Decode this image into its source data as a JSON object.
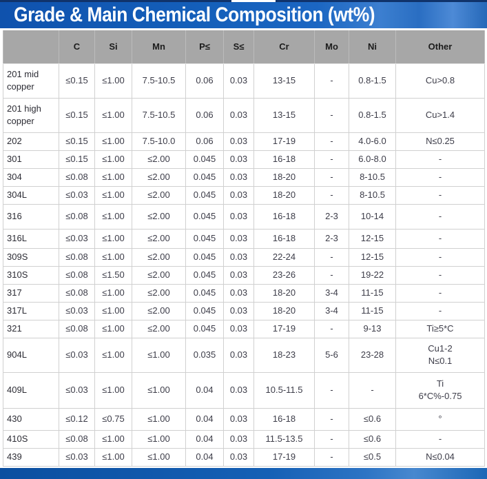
{
  "banner": {
    "title": "Grade & Main Chemical Composition (wt%)"
  },
  "table": {
    "columns": [
      "",
      "C",
      "Si",
      "Mn",
      "P≤",
      "S≤",
      "Cr",
      "Mo",
      "Ni",
      "Other"
    ],
    "rows": [
      {
        "grade": "201 mid copper",
        "values": [
          "≤0.15",
          "≤1.00",
          "7.5-10.5",
          "0.06",
          "0.03",
          "13-15",
          "-",
          "0.8-1.5",
          "Cu>0.8"
        ]
      },
      {
        "grade": "201 high copper",
        "values": [
          "≤0.15",
          "≤1.00",
          "7.5-10.5",
          "0.06",
          "0.03",
          "13-15",
          "-",
          "0.8-1.5",
          "Cu>1.4"
        ]
      },
      {
        "grade": "202",
        "values": [
          "≤0.15",
          "≤1.00",
          "7.5-10.0",
          "0.06",
          "0.03",
          "17-19",
          "-",
          "4.0-6.0",
          "N≤0.25"
        ]
      },
      {
        "grade": "301",
        "values": [
          "≤0.15",
          "≤1.00",
          "≤2.00",
          "0.045",
          "0.03",
          "16-18",
          "-",
          "6.0-8.0",
          "-"
        ]
      },
      {
        "grade": "304",
        "values": [
          "≤0.08",
          "≤1.00",
          "≤2.00",
          "0.045",
          "0.03",
          "18-20",
          "-",
          "8-10.5",
          "-"
        ]
      },
      {
        "grade": "304L",
        "values": [
          "≤0.03",
          "≤1.00",
          "≤2.00",
          "0.045",
          "0.03",
          "18-20",
          "-",
          "8-10.5",
          "-"
        ]
      },
      {
        "grade": "316",
        "values": [
          "≤0.08",
          "≤1.00",
          "≤2.00",
          "0.045",
          "0.03",
          "16-18",
          "2-3",
          "10-14",
          "-"
        ]
      },
      {
        "grade": "316L",
        "values": [
          "≤0.03",
          "≤1.00",
          "≤2.00",
          "0.045",
          "0.03",
          "16-18",
          "2-3",
          "12-15",
          "-"
        ]
      },
      {
        "grade": "309S",
        "values": [
          "≤0.08",
          "≤1.00",
          "≤2.00",
          "0.045",
          "0.03",
          "22-24",
          "-",
          "12-15",
          "-"
        ]
      },
      {
        "grade": "310S",
        "values": [
          "≤0.08",
          "≤1.50",
          "≤2.00",
          "0.045",
          "0.03",
          "23-26",
          "-",
          "19-22",
          "-"
        ]
      },
      {
        "grade": "317",
        "values": [
          "≤0.08",
          "≤1.00",
          "≤2.00",
          "0.045",
          "0.03",
          "18-20",
          "3-4",
          "11-15",
          "-"
        ]
      },
      {
        "grade": "317L",
        "values": [
          "≤0.03",
          "≤1.00",
          "≤2.00",
          "0.045",
          "0.03",
          "18-20",
          "3-4",
          "11-15",
          "-"
        ]
      },
      {
        "grade": "321",
        "values": [
          "≤0.08",
          "≤1.00",
          "≤2.00",
          "0.045",
          "0.03",
          "17-19",
          "-",
          "9-13",
          "Ti≥5*C"
        ]
      },
      {
        "grade": "904L",
        "values": [
          "≤0.03",
          "≤1.00",
          "≤1.00",
          "0.035",
          "0.03",
          "18-23",
          "5-6",
          "23-28",
          "Cu1-2\nN≤0.1"
        ]
      },
      {
        "grade": "409L",
        "values": [
          "≤0.03",
          "≤1.00",
          "≤1.00",
          "0.04",
          "0.03",
          "10.5-11.5",
          "-",
          "-",
          "Ti\n6*C%-0.75"
        ]
      },
      {
        "grade": "430",
        "values": [
          "≤0.12",
          "≤0.75",
          "≤1.00",
          "0.04",
          "0.03",
          "16-18",
          "-",
          "≤0.6",
          "°"
        ]
      },
      {
        "grade": "410S",
        "values": [
          "≤0.08",
          "≤1.00",
          "≤1.00",
          "0.04",
          "0.03",
          "11.5-13.5",
          "-",
          "≤0.6",
          "-"
        ]
      },
      {
        "grade": "439",
        "values": [
          "≤0.03",
          "≤1.00",
          "≤1.00",
          "0.04",
          "0.03",
          "17-19",
          "-",
          "≤0.5",
          "N≤0.04"
        ]
      }
    ]
  },
  "colors": {
    "banner_blue": "#1560bb",
    "top_strip_navy": "#10336b",
    "header_gray": "#a7a7a7",
    "bottom_bar_blue": "#1560b5",
    "cell_text": "#3c3c48"
  }
}
